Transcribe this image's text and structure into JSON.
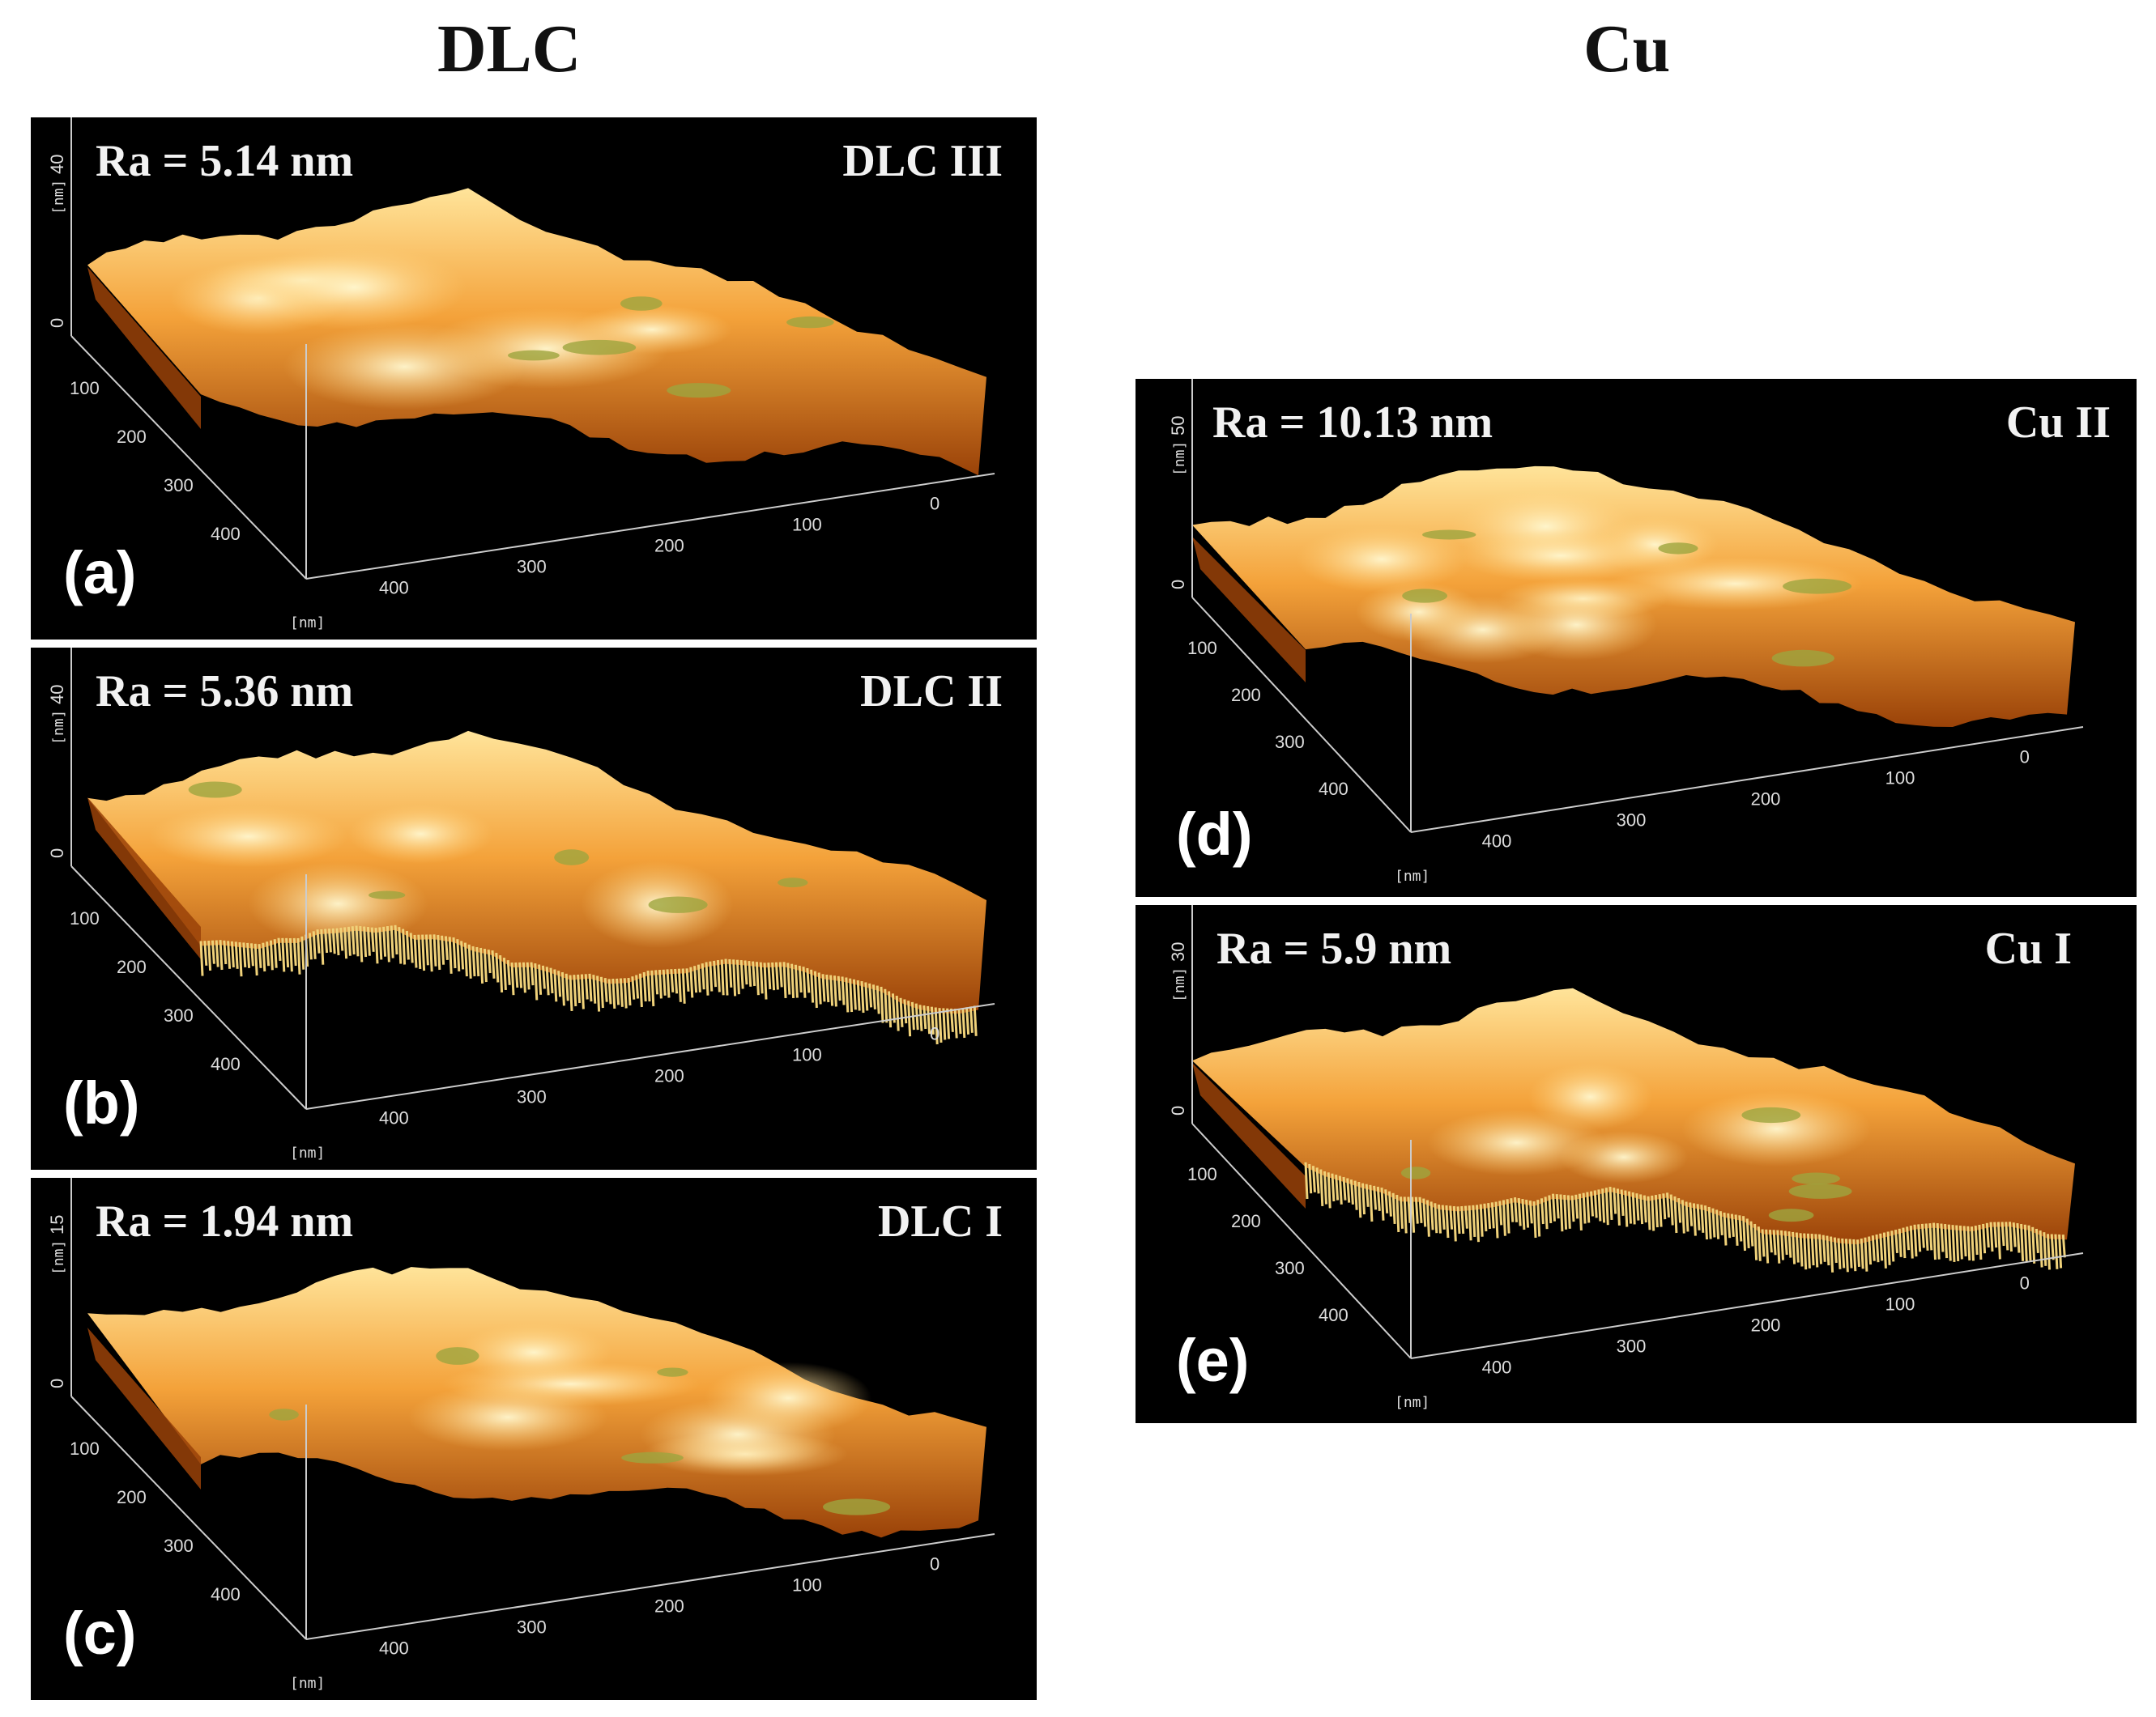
{
  "columns": {
    "dlc": "DLC",
    "cu": "Cu"
  },
  "axis_unit": "[nm]",
  "xy_ticks_left": [
    "100",
    "200",
    "300",
    "400"
  ],
  "xy_ticks_right": [
    "400",
    "300",
    "200",
    "100",
    "0"
  ],
  "colors": {
    "surface_light": "#ffe49a",
    "surface_mid": "#f4a23a",
    "surface_dark": "#9a4208",
    "grain_green": "#9ea53e"
  },
  "panels": [
    {
      "id": "a",
      "letter": "(a)",
      "ra": "Ra = 5.14 nm",
      "sample": "DLC III",
      "z_top": "40",
      "z_zero": "0",
      "z_unit": "[nm]",
      "texture": "smooth"
    },
    {
      "id": "b",
      "letter": "(b)",
      "ra": "Ra = 5.36 nm",
      "sample": "DLC II",
      "z_top": "40",
      "z_zero": "0",
      "z_unit": "[nm]",
      "texture": "spiky"
    },
    {
      "id": "c",
      "letter": "(c)",
      "ra": "Ra = 1.94 nm",
      "sample": "DLC I",
      "z_top": "15",
      "z_zero": "0",
      "z_unit": "[nm]",
      "texture": "smooth"
    },
    {
      "id": "d",
      "letter": "(d)",
      "ra": "Ra = 10.13 nm",
      "sample": "Cu II",
      "z_top": "50",
      "z_zero": "0",
      "z_unit": "[nm]",
      "texture": "grainy"
    },
    {
      "id": "e",
      "letter": "(e)",
      "ra": "Ra = 5.9 nm",
      "sample": "Cu I",
      "z_top": "30",
      "z_zero": "0",
      "z_unit": "[nm]",
      "texture": "spiky"
    }
  ]
}
